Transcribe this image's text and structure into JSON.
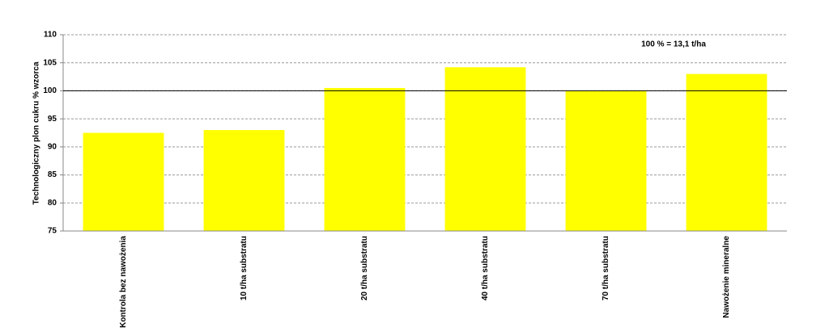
{
  "chart_data": {
    "type": "bar",
    "y_label": "Technologiczny plon cukru % wzorca",
    "annotation": "100 % = 13,1 t/ha",
    "categories": [
      "Kontrola bez nawożenia",
      "10 t/ha substratu",
      "20 t/ha substratu",
      "40 t/ha substratu",
      "70 t/ha substratu",
      "Nawożenie mineralne"
    ],
    "values": [
      92.5,
      93,
      100.5,
      104.2,
      100,
      103
    ],
    "color": "#ffff00",
    "ylim": [
      75,
      110
    ],
    "yticks": [
      75,
      80,
      85,
      90,
      95,
      100,
      105,
      110
    ],
    "reference_line": 100,
    "grid": true
  }
}
